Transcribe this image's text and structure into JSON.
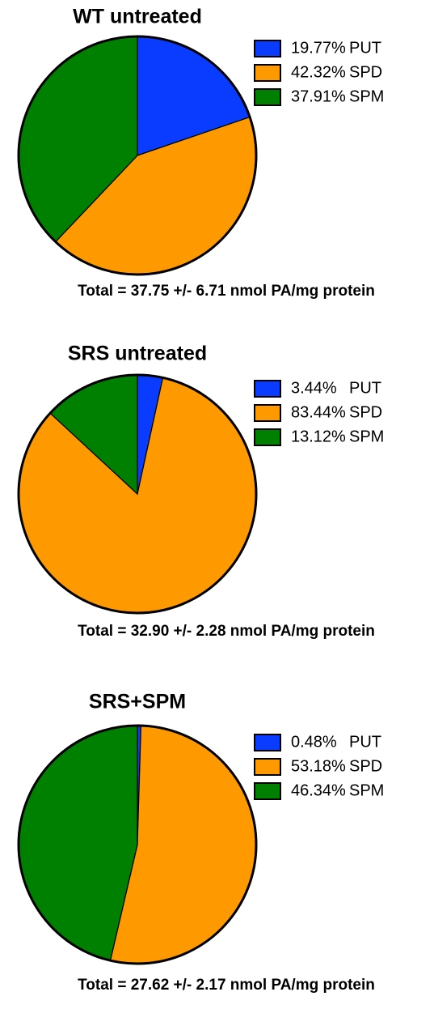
{
  "chart_data": [
    {
      "type": "pie",
      "title": "WT untreated",
      "categories": [
        "PUT",
        "SPD",
        "SPM"
      ],
      "values": [
        19.77,
        42.32,
        37.91
      ],
      "value_labels": [
        "19.77%",
        "42.32%",
        "37.91%"
      ],
      "colors": [
        "#0a3cff",
        "#ff9900",
        "#008000"
      ],
      "annotation": "Total = 37.75 +/- 6.71 nmol PA/mg protein"
    },
    {
      "type": "pie",
      "title": "SRS untreated",
      "categories": [
        "PUT",
        "SPD",
        "SPM"
      ],
      "values": [
        3.44,
        83.44,
        13.12
      ],
      "value_labels": [
        "3.44%",
        "83.44%",
        "13.12%"
      ],
      "colors": [
        "#0a3cff",
        "#ff9900",
        "#008000"
      ],
      "annotation": "Total = 32.90 +/- 2.28 nmol PA/mg protein"
    },
    {
      "type": "pie",
      "title": "SRS+SPM",
      "categories": [
        "PUT",
        "SPD",
        "SPM"
      ],
      "values": [
        0.48,
        53.18,
        46.34
      ],
      "value_labels": [
        "0.48%",
        "53.18%",
        "46.34%"
      ],
      "colors": [
        "#0a3cff",
        "#ff9900",
        "#008000"
      ],
      "annotation": "Total = 27.62 +/- 2.17 nmol PA/mg protein"
    }
  ]
}
